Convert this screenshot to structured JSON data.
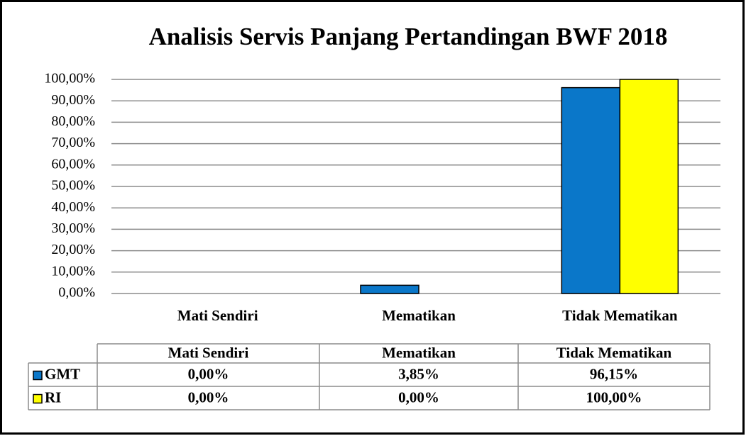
{
  "chart_data": {
    "type": "bar",
    "title": "Analisis Servis Panjang Pertandingan BWF 2018",
    "categories": [
      "Mati Sendiri",
      "Mematikan",
      "Tidak Mematikan"
    ],
    "series": [
      {
        "name": "GMT",
        "color": "#0a77c9",
        "values": [
          0,
          3.85,
          96.15
        ],
        "value_labels": [
          "0,00%",
          "3,85%",
          "96,15%"
        ]
      },
      {
        "name": "RI",
        "color": "#ffff00",
        "values": [
          0,
          0,
          100
        ],
        "value_labels": [
          "0,00%",
          "0,00%",
          "100,00%"
        ]
      }
    ],
    "ylim": [
      0,
      100
    ],
    "yticks": [
      {
        "value": 0,
        "label": "0,00%"
      },
      {
        "value": 10,
        "label": "10,00%"
      },
      {
        "value": 20,
        "label": "20,00%"
      },
      {
        "value": 30,
        "label": "30,00%"
      },
      {
        "value": 40,
        "label": "40,00%"
      },
      {
        "value": 50,
        "label": "50,00%"
      },
      {
        "value": 60,
        "label": "60,00%"
      },
      {
        "value": 70,
        "label": "70,00%"
      },
      {
        "value": 80,
        "label": "80,00%"
      },
      {
        "value": 90,
        "label": "90,00%"
      },
      {
        "value": 100,
        "label": "100,00%"
      }
    ],
    "grid": true
  }
}
